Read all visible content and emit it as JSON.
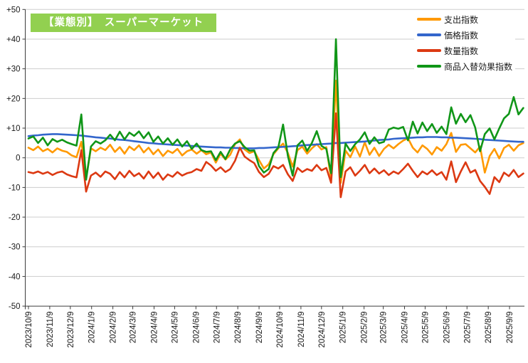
{
  "title": "【業態別】　スーパーマーケット",
  "colors": {
    "grid": "#cdcdcd",
    "axis": "#3c3c3c",
    "text": "#1a1a1a",
    "title_bg": "#92D050",
    "title_text": "#ffffff",
    "orange": "#FF9900",
    "blue": "#3366CC",
    "red": "#DC3912",
    "green": "#109618"
  },
  "chart_data": {
    "type": "line",
    "title": "【業態別】　スーパーマーケット",
    "x_start": "2023/10/9",
    "x_interval_days": 7,
    "x_tick_labels": [
      "2023/10/9",
      "2023/11/9",
      "2023/12/9",
      "2024/1/9",
      "2024/2/9",
      "2024/3/9",
      "2024/4/9",
      "2024/5/9",
      "2024/6/9",
      "2024/7/9",
      "2024/8/9",
      "2024/9/9",
      "2024/10/9",
      "2024/11/9",
      "2024/12/9",
      "2025/1/9",
      "2025/2/9",
      "2025/3/9",
      "2025/4/9",
      "2025/5/9",
      "2025/6/9",
      "2025/7/9",
      "2025/8/9",
      "2025/9/9"
    ],
    "y_ticks": [
      "+50",
      "+40",
      "+30",
      "+20",
      "+10",
      "0",
      "-10",
      "-20",
      "-30",
      "-40",
      "-50"
    ],
    "ylim": [
      -50,
      50
    ],
    "grid": true,
    "legend_position": "top-right",
    "series": [
      {
        "name": "支出指数",
        "color": "#FF9900",
        "values": [
          3.4,
          2.6,
          3.8,
          2.2,
          3.0,
          1.8,
          3.2,
          2.4,
          2.0,
          0.8,
          0.2,
          5.4,
          -6.6,
          3.2,
          2.2,
          3.4,
          2.6,
          4.4,
          2.0,
          3.6,
          1.4,
          3.8,
          2.6,
          4.2,
          1.8,
          3.4,
          1.2,
          2.8,
          0.6,
          2.4,
          1.6,
          3.0,
          0.8,
          2.2,
          2.8,
          1.4,
          2.6,
          1.2,
          1.8,
          -1.6,
          1.4,
          -0.6,
          1.0,
          4.6,
          6.2,
          2.8,
          1.6,
          2.2,
          -0.8,
          -3.6,
          -2.2,
          1.2,
          3.2,
          4.8,
          1.6,
          -3.0,
          2.6,
          3.8,
          1.4,
          3.2,
          4.6,
          2.8,
          3.6,
          -7.2,
          26.0,
          -8.5,
          2.4,
          0.2,
          3.8,
          0.4,
          5.2,
          1.0,
          3.4,
          0.6,
          3.0,
          4.4,
          3.2,
          4.6,
          5.8,
          6.6,
          3.4,
          1.8,
          4.2,
          3.0,
          1.1,
          3.6,
          2.4,
          4.6,
          8.4,
          2.0,
          4.4,
          4.6,
          3.2,
          1.8,
          3.8,
          -5.0,
          0.6,
          3.0,
          -0.2,
          3.3,
          4.4,
          2.4,
          4.2,
          5.0
        ]
      },
      {
        "name": "価格指数",
        "color": "#3366CC",
        "values": [
          7.3,
          7.5,
          7.6,
          7.8,
          7.9,
          8.0,
          8.0,
          7.9,
          7.8,
          7.7,
          7.6,
          7.5,
          7.3,
          7.1,
          6.9,
          6.8,
          6.6,
          6.5,
          6.3,
          6.1,
          6.0,
          5.8,
          5.6,
          5.4,
          5.2,
          5.0,
          4.9,
          4.7,
          4.6,
          4.5,
          4.4,
          4.3,
          4.2,
          4.1,
          4.0,
          3.9,
          3.8,
          3.7,
          3.6,
          3.5,
          3.5,
          3.4,
          3.4,
          3.3,
          3.3,
          3.2,
          3.2,
          3.2,
          3.3,
          3.3,
          3.4,
          3.5,
          3.6,
          3.7,
          3.8,
          3.9,
          4.0,
          4.2,
          4.3,
          4.4,
          4.5,
          4.6,
          4.7,
          4.8,
          5.0,
          5.0,
          5.1,
          5.2,
          5.3,
          5.4,
          5.5,
          5.7,
          5.8,
          6.0,
          6.1,
          6.2,
          6.4,
          6.5,
          6.6,
          6.7,
          6.8,
          6.9,
          6.9,
          7.0,
          7.0,
          7.0,
          6.9,
          6.9,
          6.8,
          6.8,
          6.7,
          6.6,
          6.5,
          6.4,
          6.3,
          6.1,
          6.0,
          5.9,
          5.8,
          5.7,
          5.6,
          5.5,
          5.4,
          5.4
        ]
      },
      {
        "name": "数量指数",
        "color": "#DC3912",
        "values": [
          -4.8,
          -5.2,
          -4.6,
          -5.4,
          -4.8,
          -5.8,
          -5.0,
          -4.6,
          -5.6,
          -6.2,
          -6.6,
          2.6,
          -11.4,
          -6.0,
          -5.0,
          -6.4,
          -4.6,
          -5.4,
          -7.2,
          -4.8,
          -6.6,
          -4.4,
          -6.2,
          -5.2,
          -7.0,
          -4.6,
          -6.8,
          -5.0,
          -7.4,
          -5.6,
          -6.4,
          -4.8,
          -6.0,
          -5.2,
          -4.8,
          -3.8,
          -4.4,
          -1.4,
          -2.6,
          -4.4,
          -3.2,
          -4.8,
          -3.8,
          -1.0,
          3.4,
          0.4,
          -0.8,
          -1.8,
          -4.8,
          -6.5,
          -5.4,
          -2.8,
          -3.6,
          -2.4,
          -5.6,
          -7.8,
          -3.4,
          -4.8,
          -3.8,
          -4.4,
          -2.4,
          -4.2,
          -3.4,
          -8.4,
          15.0,
          -13.3,
          -4.6,
          -3.2,
          -6.0,
          -4.4,
          -2.4,
          -5.2,
          -3.6,
          -5.3,
          -4.2,
          -5.8,
          -4.6,
          -5.4,
          -3.8,
          -2.0,
          -4.4,
          -6.5,
          -4.6,
          -5.6,
          -4.2,
          -5.8,
          -4.8,
          -7.4,
          -1.2,
          -8.2,
          -4.6,
          -1.5,
          -5.0,
          -4.1,
          -7.8,
          -9.8,
          -12.2,
          -6.5,
          -8.2,
          -5.0,
          -6.2,
          -4.1,
          -6.5,
          -5.3
        ]
      },
      {
        "name": "商品入替効果指数",
        "color": "#109618",
        "values": [
          6.5,
          7.2,
          5.0,
          6.8,
          4.2,
          6.3,
          5.4,
          6.1,
          5.2,
          4.6,
          4.1,
          14.6,
          -7.4,
          3.8,
          5.6,
          4.8,
          5.9,
          7.8,
          5.9,
          8.8,
          6.2,
          8.5,
          7.4,
          8.9,
          6.6,
          8.6,
          5.4,
          7.2,
          4.8,
          6.6,
          4.4,
          6.2,
          3.8,
          5.6,
          3.0,
          4.8,
          2.6,
          2.0,
          2.2,
          -0.8,
          2.0,
          -0.4,
          2.8,
          4.8,
          5.6,
          3.6,
          2.4,
          2.5,
          -2.8,
          -5.0,
          -3.8,
          1.6,
          3.5,
          11.2,
          0.6,
          -6.0,
          4.2,
          5.8,
          2.3,
          5.0,
          9.0,
          4.0,
          3.0,
          -5.2,
          40.0,
          -6.5,
          4.8,
          2.3,
          4.6,
          6.2,
          8.6,
          4.7,
          6.9,
          4.9,
          5.4,
          9.5,
          10.2,
          9.8,
          10.4,
          5.9,
          12.2,
          8.2,
          11.9,
          9.0,
          11.4,
          8.4,
          10.5,
          8.0,
          17.0,
          11.5,
          14.8,
          12.0,
          14.4,
          10.2,
          2.2,
          8.0,
          9.9,
          6.2,
          9.9,
          13.3,
          14.8,
          20.5,
          14.6,
          16.8
        ]
      }
    ]
  }
}
